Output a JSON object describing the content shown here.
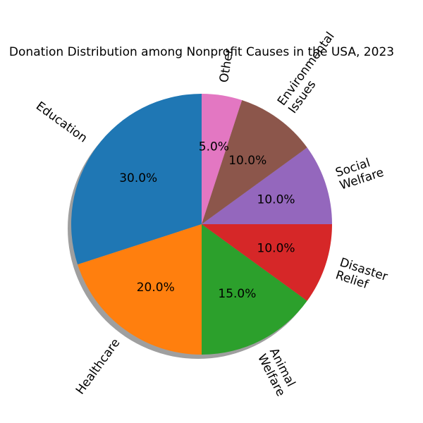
{
  "chart_data": {
    "type": "pie",
    "title": "Donation Distribution among Nonprofit Causes in the USA, 2023",
    "labels": [
      "Education",
      "Healthcare",
      "Animal\nWelfare",
      "Disaster\nRelief",
      "Social\nWelfare",
      "Environmental\nIssues",
      "Other"
    ],
    "values": [
      30,
      20,
      15,
      10,
      10,
      10,
      5
    ],
    "percent_labels": [
      "30.0%",
      "20.0%",
      "15.0%",
      "10.0%",
      "10.0%",
      "10.0%",
      "5.0%"
    ],
    "colors": [
      "#1f77b4",
      "#ff7f0e",
      "#2ca02c",
      "#d62728",
      "#9467bd",
      "#8c564b",
      "#e377c2"
    ],
    "start_angle_deg": 90,
    "direction": "counterclockwise",
    "shadow": true,
    "rotated_labels": true
  }
}
